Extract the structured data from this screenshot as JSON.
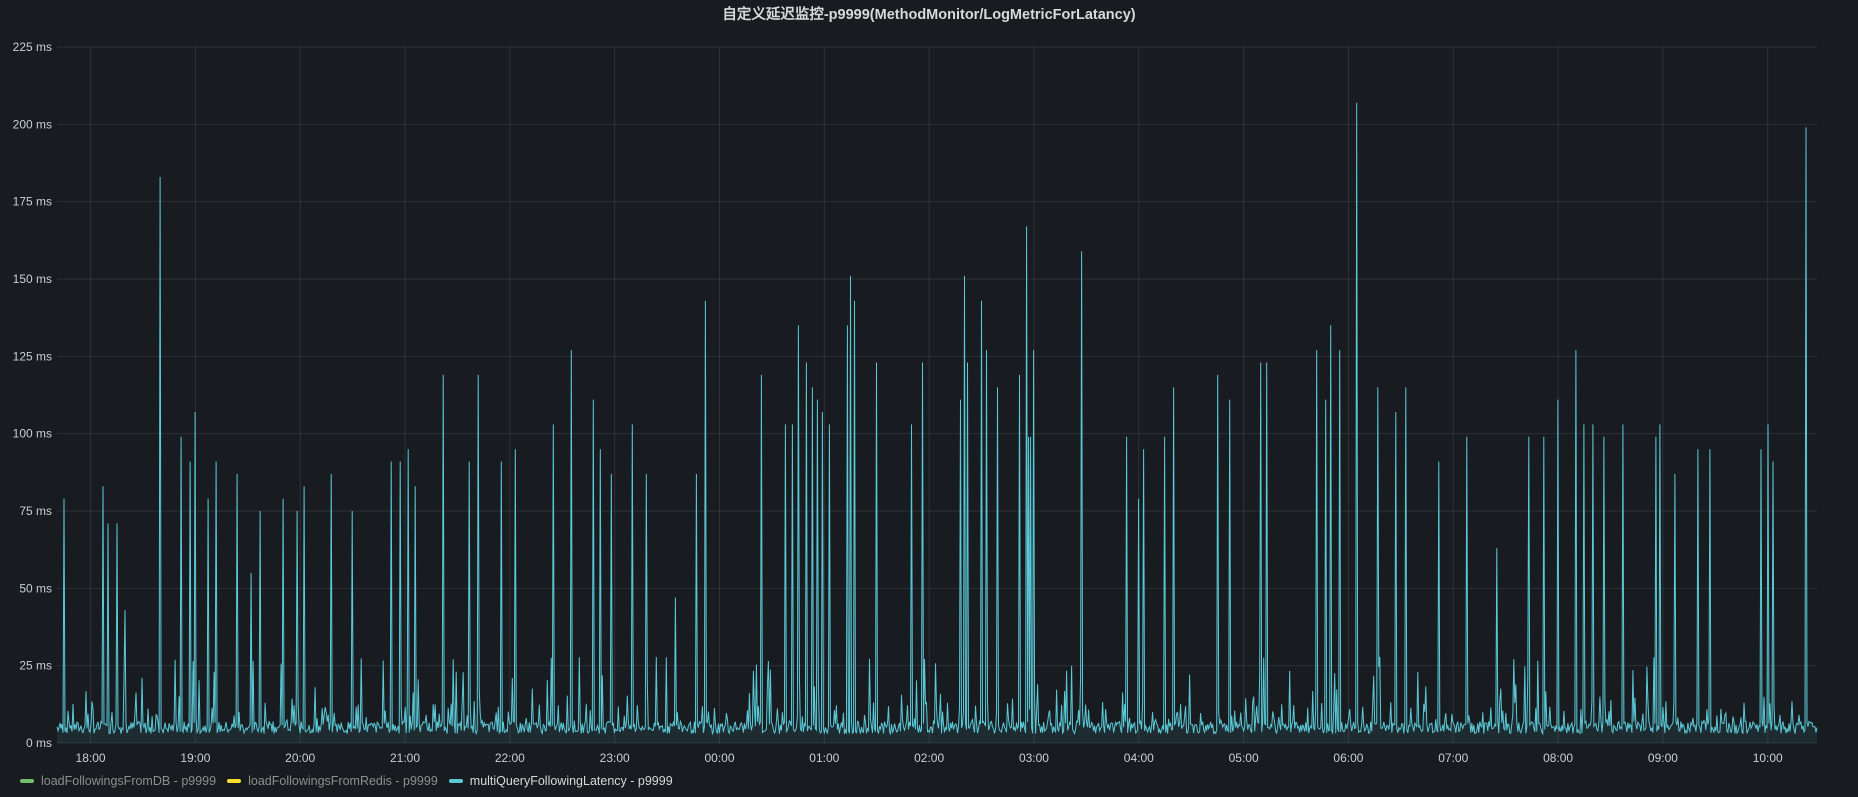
{
  "panel": {
    "title": "自定义延迟监控-p9999(MethodMonitor/LogMetricForLatancy)"
  },
  "legend": [
    {
      "label": "loadFollowingsFromDB - p9999",
      "color": "#73bf69",
      "active": false
    },
    {
      "label": "loadFollowingsFromRedis - p9999",
      "color": "#fade2a",
      "active": false
    },
    {
      "label": "multiQueryFollowingLatency - p9999",
      "color": "#5bc8d6",
      "active": true
    }
  ],
  "chart_data": {
    "type": "line",
    "title": "自定义延迟监控-p9999(MethodMonitor/LogMetricForLatancy)",
    "xlabel": "",
    "ylabel": "",
    "unit": "ms",
    "grid": true,
    "legend_position": "bottom-left",
    "ylim": [
      0,
      225
    ],
    "yticks": [
      "0 ms",
      "25 ms",
      "50 ms",
      "75 ms",
      "100 ms",
      "125 ms",
      "150 ms",
      "175 ms",
      "200 ms",
      "225 ms"
    ],
    "ytick_values": [
      0,
      25,
      50,
      75,
      100,
      125,
      150,
      175,
      200,
      225
    ],
    "xlim_hours": [
      17.68,
      10.47
    ],
    "xticks": [
      "18:00",
      "19:00",
      "20:00",
      "21:00",
      "22:00",
      "23:00",
      "00:00",
      "01:00",
      "02:00",
      "03:00",
      "04:00",
      "05:00",
      "06:00",
      "07:00",
      "08:00",
      "09:00",
      "10:00"
    ],
    "baseline_ms": 5,
    "series": [
      {
        "name": "loadFollowingsFromDB - p9999",
        "color": "#73bf69",
        "values": []
      },
      {
        "name": "loadFollowingsFromRedis - p9999",
        "color": "#fade2a",
        "values": []
      },
      {
        "name": "multiQueryFollowingLatency - p9999",
        "color": "#5bc8d6",
        "peaks": [
          [
            "17:45",
            79
          ],
          [
            "18:07",
            83
          ],
          [
            "18:10",
            71
          ],
          [
            "18:15",
            71
          ],
          [
            "18:20",
            43
          ],
          [
            "18:40",
            183
          ],
          [
            "18:52",
            99
          ],
          [
            "18:57",
            91
          ],
          [
            "19:00",
            107
          ],
          [
            "19:07",
            79
          ],
          [
            "19:12",
            91
          ],
          [
            "19:24",
            87
          ],
          [
            "19:32",
            55
          ],
          [
            "19:37",
            75
          ],
          [
            "19:50",
            79
          ],
          [
            "19:58",
            75
          ],
          [
            "20:02",
            83
          ],
          [
            "20:18",
            87
          ],
          [
            "20:30",
            75
          ],
          [
            "20:52",
            91
          ],
          [
            "20:57",
            91
          ],
          [
            "21:02",
            95
          ],
          [
            "21:06",
            83
          ],
          [
            "21:22",
            119
          ],
          [
            "21:37",
            91
          ],
          [
            "21:42",
            119
          ],
          [
            "21:55",
            91
          ],
          [
            "22:03",
            95
          ],
          [
            "22:25",
            103
          ],
          [
            "22:35",
            127
          ],
          [
            "22:48",
            111
          ],
          [
            "22:52",
            95
          ],
          [
            "22:58",
            87
          ],
          [
            "23:10",
            103
          ],
          [
            "23:18",
            87
          ],
          [
            "23:35",
            47
          ],
          [
            "23:47",
            87
          ],
          [
            "23:52",
            143
          ],
          [
            "00:24",
            119
          ],
          [
            "00:38",
            103
          ],
          [
            "00:42",
            103
          ],
          [
            "00:45",
            135
          ],
          [
            "00:50",
            123
          ],
          [
            "00:53",
            115
          ],
          [
            "00:56",
            111
          ],
          [
            "00:59",
            107
          ],
          [
            "01:03",
            103
          ],
          [
            "01:13",
            135
          ],
          [
            "01:15",
            151
          ],
          [
            "01:17",
            143
          ],
          [
            "01:30",
            123
          ],
          [
            "01:50",
            103
          ],
          [
            "01:56",
            123
          ],
          [
            "02:18",
            111
          ],
          [
            "02:20",
            151
          ],
          [
            "02:22",
            123
          ],
          [
            "02:30",
            143
          ],
          [
            "02:33",
            127
          ],
          [
            "02:39",
            115
          ],
          [
            "02:52",
            119
          ],
          [
            "02:56",
            61
          ],
          [
            "02:57",
            99
          ],
          [
            "02:58",
            99
          ],
          [
            "02:56",
            167
          ],
          [
            "03:00",
            127
          ],
          [
            "03:27",
            159
          ],
          [
            "03:53",
            99
          ],
          [
            "04:00",
            79
          ],
          [
            "04:03",
            95
          ],
          [
            "04:15",
            99
          ],
          [
            "04:20",
            115
          ],
          [
            "04:45",
            119
          ],
          [
            "04:52",
            111
          ],
          [
            "05:10",
            123
          ],
          [
            "05:13",
            123
          ],
          [
            "05:42",
            127
          ],
          [
            "05:47",
            111
          ],
          [
            "05:50",
            135
          ],
          [
            "05:55",
            127
          ],
          [
            "06:05",
            207
          ],
          [
            "06:17",
            115
          ],
          [
            "06:27",
            107
          ],
          [
            "06:33",
            115
          ],
          [
            "06:52",
            91
          ],
          [
            "07:08",
            99
          ],
          [
            "07:25",
            63
          ],
          [
            "07:43",
            99
          ],
          [
            "07:52",
            99
          ],
          [
            "08:00",
            111
          ],
          [
            "08:10",
            127
          ],
          [
            "08:15",
            103
          ],
          [
            "08:20",
            103
          ],
          [
            "08:26",
            99
          ],
          [
            "08:37",
            103
          ],
          [
            "08:56",
            99
          ],
          [
            "08:58",
            103
          ],
          [
            "09:07",
            87
          ],
          [
            "09:20",
            95
          ],
          [
            "09:27",
            95
          ],
          [
            "09:56",
            95
          ],
          [
            "10:00",
            103
          ],
          [
            "10:03",
            91
          ],
          [
            "10:22",
            199
          ]
        ]
      }
    ]
  }
}
